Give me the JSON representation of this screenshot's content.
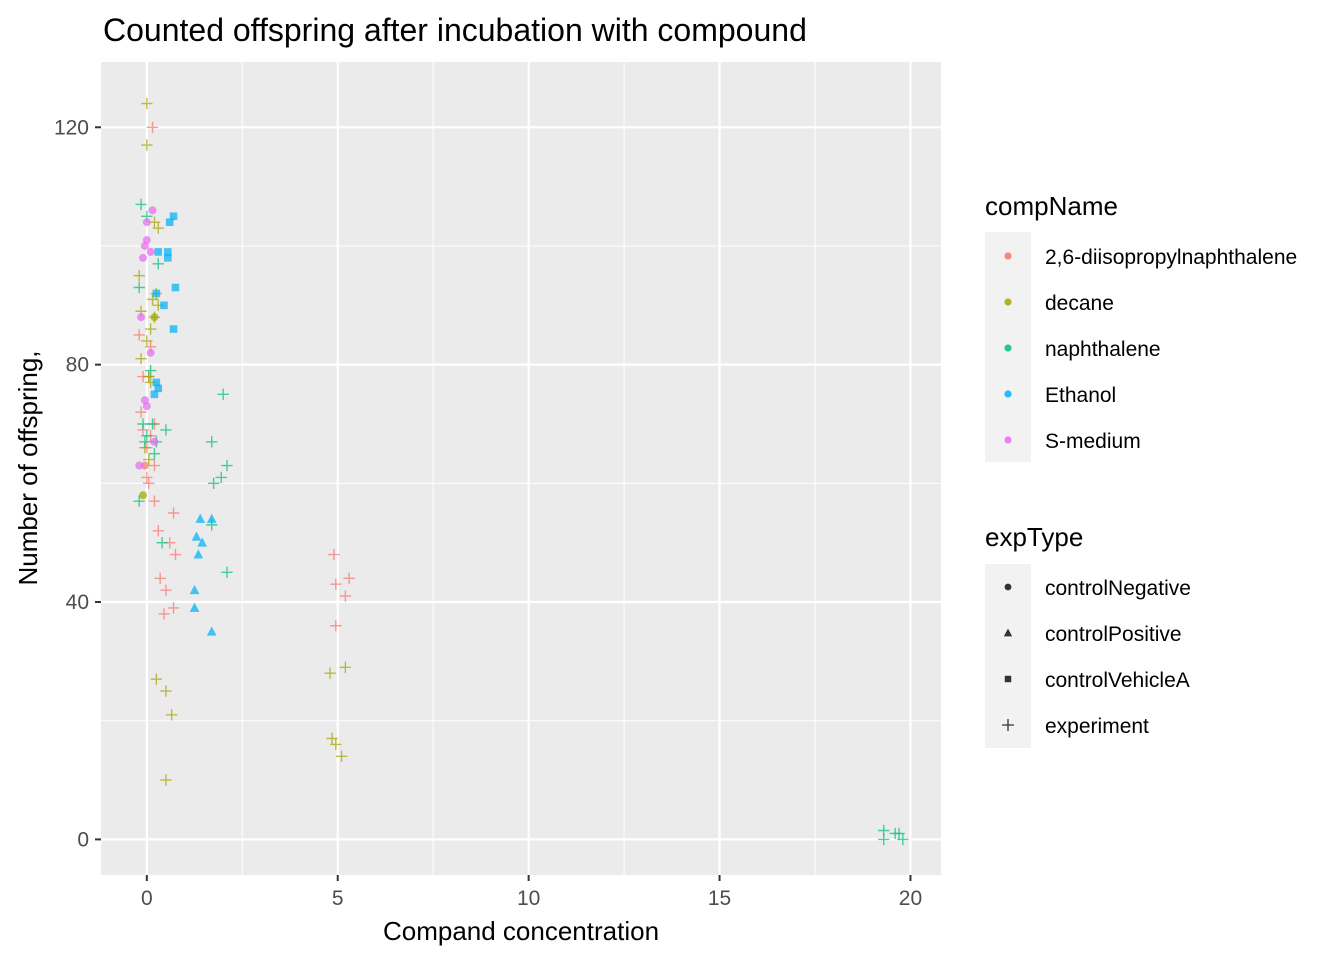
{
  "chart_data": {
    "type": "scatter",
    "title": "Counted offspring after incubation with compound",
    "xlabel": "Compand concentration",
    "ylabel": "Number of offspring,",
    "xlim": [
      -1.2,
      20.8
    ],
    "ylim": [
      -6,
      131
    ],
    "x_ticks": [
      0,
      5,
      10,
      15,
      20
    ],
    "x_tick_labels": [
      "0",
      "5",
      "10",
      "15",
      "20"
    ],
    "y_ticks": [
      0,
      40,
      80,
      120
    ],
    "y_tick_labels": [
      "0",
      "40",
      "80",
      "120"
    ],
    "grid": true,
    "background": "#EBEBEB",
    "legend_position": "right",
    "color_legend": {
      "title": "compName",
      "items": [
        {
          "label": "2,6-diisopropylnaphthalene",
          "color": "#F8766D"
        },
        {
          "label": "decane",
          "color": "#A3A500"
        },
        {
          "label": "naphthalene",
          "color": "#00BF7D"
        },
        {
          "label": "Ethanol",
          "color": "#00B0F6"
        },
        {
          "label": "S-medium",
          "color": "#E76BF3"
        }
      ]
    },
    "shape_legend": {
      "title": "expType",
      "items": [
        {
          "label": "controlNegative",
          "shape": "circle"
        },
        {
          "label": "controlPositive",
          "shape": "triangle"
        },
        {
          "label": "controlVehicleA",
          "shape": "square"
        },
        {
          "label": "experiment",
          "shape": "plus"
        }
      ]
    },
    "series": [
      {
        "compName": "2,6-diisopropylnaphthalene",
        "expType": "experiment",
        "points": [
          [
            0.15,
            120
          ],
          [
            -0.2,
            85
          ],
          [
            0.1,
            83
          ],
          [
            -0.1,
            78
          ],
          [
            0.05,
            78
          ],
          [
            -0.15,
            72
          ],
          [
            0.2,
            70
          ],
          [
            -0.1,
            69
          ],
          [
            0.1,
            68
          ],
          [
            0,
            66
          ],
          [
            0.2,
            63
          ],
          [
            0,
            61
          ],
          [
            0.05,
            60
          ],
          [
            0.2,
            57
          ],
          [
            0.7,
            55
          ],
          [
            0.3,
            52
          ],
          [
            0.6,
            50
          ],
          [
            0.75,
            48
          ],
          [
            0.35,
            44
          ],
          [
            0.5,
            42
          ],
          [
            0.7,
            39
          ],
          [
            0.45,
            38
          ],
          [
            4.9,
            48
          ],
          [
            5.3,
            44
          ],
          [
            4.95,
            43
          ],
          [
            5.2,
            41
          ],
          [
            4.95,
            36
          ]
        ]
      },
      {
        "compName": "2,6-diisopropylnaphthalene",
        "expType": "controlNegative",
        "points": [
          [
            -0.05,
            63
          ]
        ]
      },
      {
        "compName": "decane",
        "expType": "experiment",
        "points": [
          [
            0,
            124
          ],
          [
            0,
            117
          ],
          [
            0.2,
            104
          ],
          [
            0.3,
            103
          ],
          [
            -0.2,
            95
          ],
          [
            0.25,
            92
          ],
          [
            0.15,
            91
          ],
          [
            0.3,
            90
          ],
          [
            -0.15,
            89
          ],
          [
            0.2,
            88
          ],
          [
            0.1,
            86
          ],
          [
            0,
            84
          ],
          [
            -0.15,
            81
          ],
          [
            0.05,
            78
          ],
          [
            0.1,
            77
          ],
          [
            -0.05,
            66
          ],
          [
            0.05,
            64
          ],
          [
            0.25,
            27
          ],
          [
            0.5,
            25
          ],
          [
            0.65,
            21
          ],
          [
            0.5,
            10
          ],
          [
            5.2,
            29
          ],
          [
            4.8,
            28
          ],
          [
            4.85,
            17
          ],
          [
            4.95,
            16
          ],
          [
            5.1,
            14
          ]
        ]
      },
      {
        "compName": "decane",
        "expType": "controlNegative",
        "points": [
          [
            -0.1,
            58
          ],
          [
            0.2,
            88
          ]
        ]
      },
      {
        "compName": "naphthalene",
        "expType": "experiment",
        "points": [
          [
            -0.15,
            107
          ],
          [
            0,
            105
          ],
          [
            0.1,
            79
          ],
          [
            0.3,
            97
          ],
          [
            -0.2,
            93
          ],
          [
            -0.1,
            70
          ],
          [
            0,
            68
          ],
          [
            0.15,
            70
          ],
          [
            0.5,
            69
          ],
          [
            0.25,
            67
          ],
          [
            -0.05,
            67
          ],
          [
            0.2,
            65
          ],
          [
            -0.2,
            57
          ],
          [
            0.4,
            50
          ],
          [
            2,
            75
          ],
          [
            1.7,
            67
          ],
          [
            2.1,
            63
          ],
          [
            1.95,
            61
          ],
          [
            1.75,
            60
          ],
          [
            1.7,
            53
          ],
          [
            2.1,
            45
          ],
          [
            19.3,
            1.5
          ],
          [
            19.6,
            1
          ],
          [
            19.7,
            1
          ],
          [
            19.3,
            0
          ],
          [
            19.8,
            0
          ]
        ]
      },
      {
        "compName": "Ethanol",
        "expType": "controlVehicleA",
        "points": [
          [
            0.7,
            105
          ],
          [
            0.6,
            104
          ],
          [
            0.3,
            99
          ],
          [
            0.55,
            99
          ],
          [
            0.55,
            98
          ],
          [
            0.75,
            93
          ],
          [
            0.25,
            92
          ],
          [
            0.45,
            90
          ],
          [
            0.7,
            86
          ],
          [
            0.25,
            77
          ],
          [
            0.3,
            76
          ],
          [
            0.2,
            75
          ]
        ]
      },
      {
        "compName": "Ethanol",
        "expType": "controlPositive",
        "points": [
          [
            1.4,
            54
          ],
          [
            1.7,
            54
          ],
          [
            1.3,
            51
          ],
          [
            1.45,
            50
          ],
          [
            1.35,
            48
          ],
          [
            1.25,
            42
          ],
          [
            1.25,
            39
          ],
          [
            1.7,
            35
          ]
        ]
      },
      {
        "compName": "S-medium",
        "expType": "controlNegative",
        "points": [
          [
            0.15,
            106
          ],
          [
            0,
            104
          ],
          [
            0,
            101
          ],
          [
            -0.05,
            100
          ],
          [
            -0.1,
            98
          ],
          [
            0.1,
            99
          ],
          [
            -0.15,
            88
          ],
          [
            0.1,
            82
          ],
          [
            -0.05,
            74
          ],
          [
            0,
            73
          ],
          [
            0.2,
            67
          ],
          [
            -0.2,
            63
          ]
        ]
      }
    ]
  }
}
